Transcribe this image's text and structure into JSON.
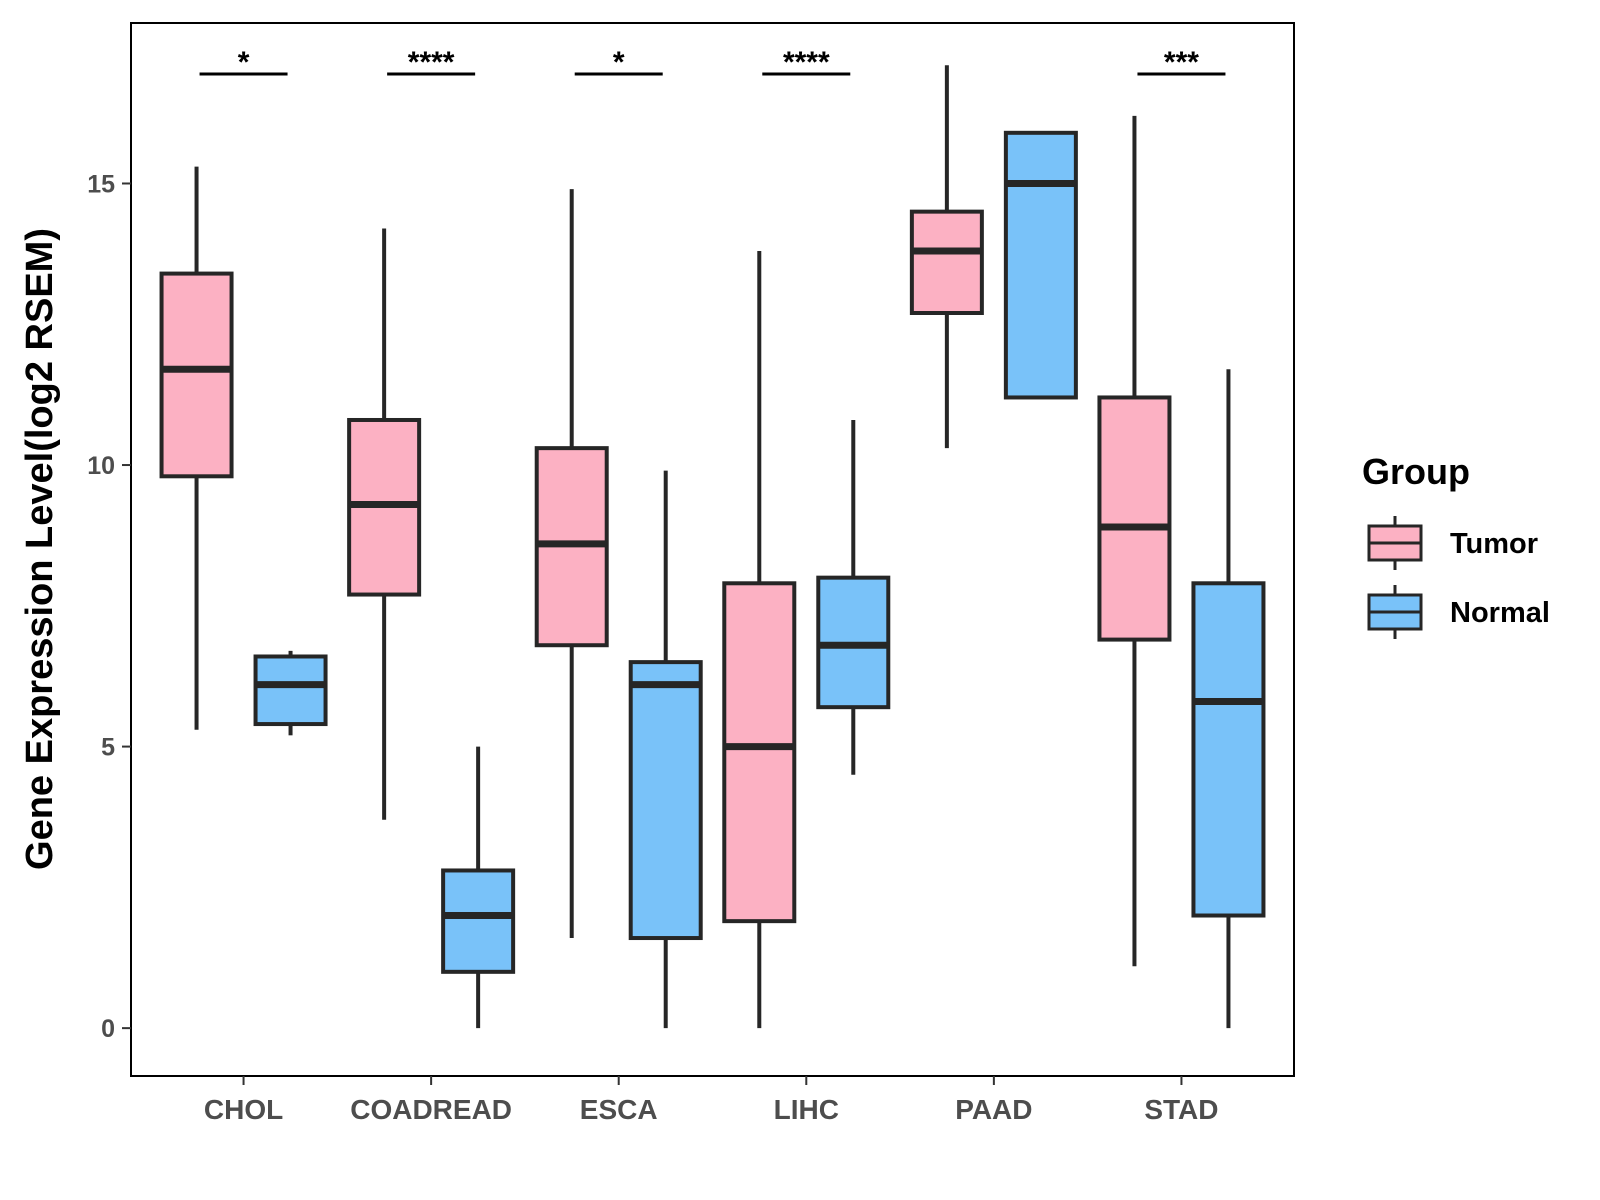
{
  "chart_data": {
    "type": "boxplot",
    "ylabel": "Gene Expression Level(log2 RSEM)",
    "xlabel": "",
    "categories": [
      "CHOL",
      "COADREAD",
      "ESCA",
      "LIHC",
      "PAAD",
      "STAD"
    ],
    "yticks": [
      0,
      5,
      10,
      15
    ],
    "ylim": [
      -0.85,
      17.85
    ],
    "grid": false,
    "legend": {
      "title": "Group",
      "placement": "right",
      "entries": [
        {
          "name": "Tumor",
          "color": "#fcb1c3"
        },
        {
          "name": "Normal",
          "color": "#79c2f9"
        }
      ]
    },
    "series": [
      {
        "name": "Tumor",
        "color": "#fcb1c3",
        "boxes": [
          {
            "category": "CHOL",
            "min": 5.3,
            "q1": 9.8,
            "median": 11.7,
            "q3": 13.4,
            "max": 15.3
          },
          {
            "category": "COADREAD",
            "min": 3.7,
            "q1": 7.7,
            "median": 9.3,
            "q3": 10.8,
            "max": 14.2
          },
          {
            "category": "ESCA",
            "min": 1.6,
            "q1": 6.8,
            "median": 8.6,
            "q3": 10.3,
            "max": 14.9
          },
          {
            "category": "LIHC",
            "min": 0.0,
            "q1": 1.9,
            "median": 5.0,
            "q3": 7.9,
            "max": 13.8
          },
          {
            "category": "PAAD",
            "min": 10.3,
            "q1": 12.7,
            "median": 13.8,
            "q3": 14.5,
            "max": 17.1
          },
          {
            "category": "STAD",
            "min": 1.1,
            "q1": 6.9,
            "median": 8.9,
            "q3": 11.2,
            "max": 16.2
          }
        ]
      },
      {
        "name": "Normal",
        "color": "#79c2f9",
        "boxes": [
          {
            "category": "CHOL",
            "min": 5.2,
            "q1": 5.4,
            "median": 6.1,
            "q3": 6.6,
            "max": 6.7
          },
          {
            "category": "COADREAD",
            "min": 0.0,
            "q1": 1.0,
            "median": 2.0,
            "q3": 2.8,
            "max": 5.0
          },
          {
            "category": "ESCA",
            "min": 0.0,
            "q1": 1.6,
            "median": 6.1,
            "q3": 6.5,
            "max": 9.9
          },
          {
            "category": "LIHC",
            "min": 4.5,
            "q1": 5.7,
            "median": 6.8,
            "q3": 8.0,
            "max": 10.8
          },
          {
            "category": "PAAD",
            "min": 11.2,
            "q1": 11.2,
            "median": 15.0,
            "q3": 15.9,
            "max": 15.9
          },
          {
            "category": "STAD",
            "min": 0.0,
            "q1": 2.0,
            "median": 5.8,
            "q3": 7.9,
            "max": 11.7
          }
        ]
      }
    ],
    "significance": [
      {
        "category": "CHOL",
        "label": "*"
      },
      {
        "category": "COADREAD",
        "label": "****"
      },
      {
        "category": "ESCA",
        "label": "*"
      },
      {
        "category": "LIHC",
        "label": "****"
      },
      {
        "category": "STAD",
        "label": "***"
      }
    ]
  }
}
